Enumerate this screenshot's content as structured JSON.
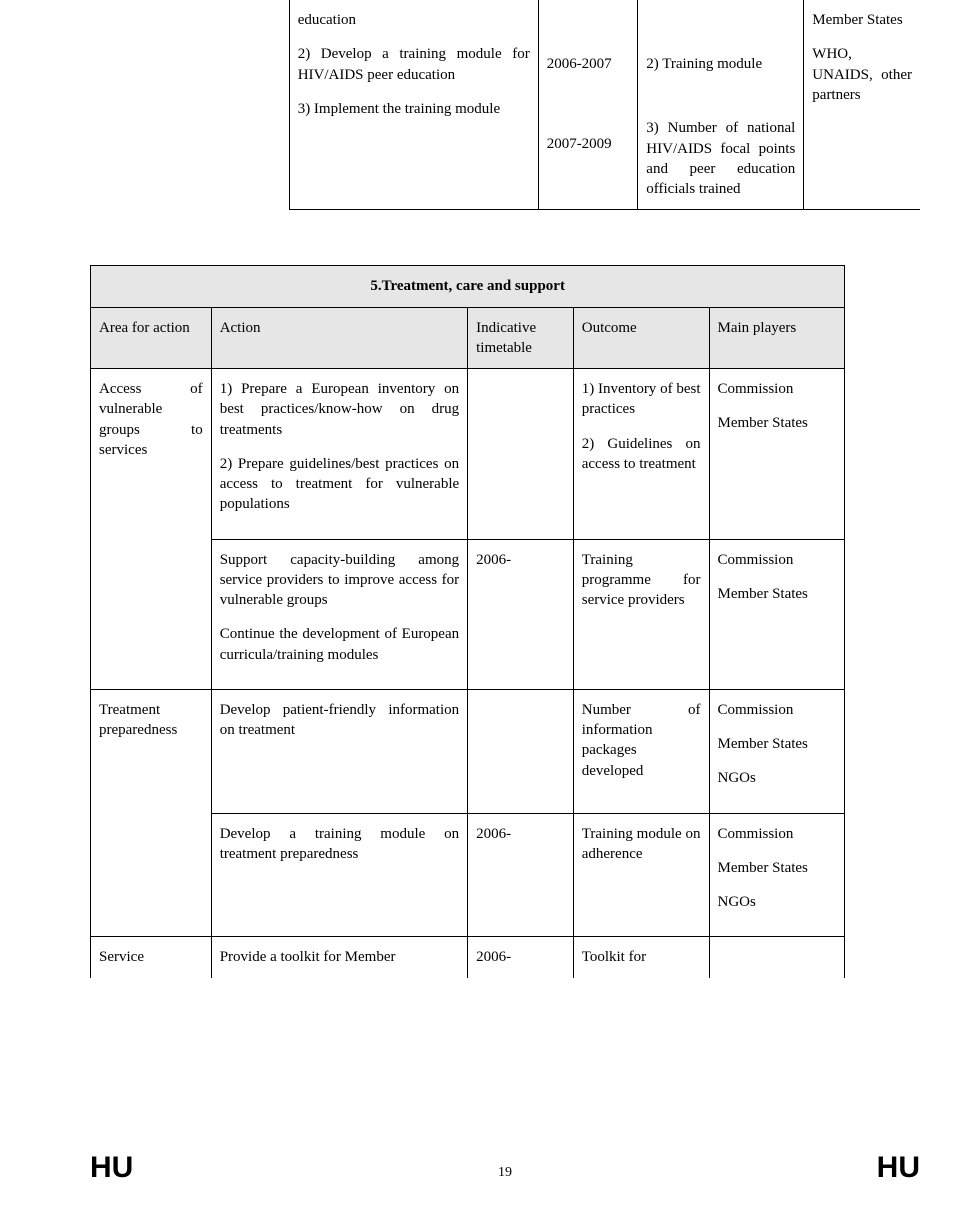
{
  "table_top": {
    "row1": {
      "action_a": "education",
      "action_b": "2) Develop a training module for HIV/AIDS peer education",
      "action_c": "3) Implement the training module",
      "time1": "2006-2007",
      "out1": "2) Training module",
      "main_a": "Member States",
      "main_b": "WHO, UNAIDS, other partners",
      "time2": "2007-2009",
      "out2": "3) Number of national HIV/AIDS focal points and peer education officials trained"
    }
  },
  "section5": {
    "title": "5.Treatment, care and support",
    "headers": {
      "area": "Area for action",
      "action": "Action",
      "time": "Indicative timetable",
      "outcome": "Outcome",
      "main": "Main players"
    },
    "rows": [
      {
        "area": "Access of vulnerable groups to services",
        "action": "1) Prepare a European inventory on best practices/know-how on drug treatments\n\n2) Prepare guidelines/best practices on access to treatment for vulnerable populations",
        "time": "",
        "outcome": "1) Inventory of best practices\n\n2) Guidelines on access to treatment",
        "main": "Commission\n\nMember States"
      },
      {
        "area": "",
        "action": "Support capacity-building among service providers to improve access for vulnerable groups\n\nContinue the development of European curricula/training modules",
        "time": "2006-",
        "outcome": "Training programme for service providers",
        "main": "Commission\n\nMember States"
      },
      {
        "area": "Treatment preparedness",
        "action": "Develop patient-friendly information on treatment",
        "time": "",
        "outcome": "Number of information packages developed",
        "main": "Commission\n\nMember States\n\nNGOs"
      },
      {
        "area": "",
        "action": "Develop a training module on treatment preparedness",
        "time": "2006-",
        "outcome": "Training module on adherence",
        "main": "Commission\n\nMember States\n\nNGOs"
      },
      {
        "area": "Service",
        "action": "Provide a toolkit for Member",
        "time": "2006-",
        "outcome": "Toolkit for",
        "main": ""
      }
    ]
  },
  "footer": {
    "left": "HU",
    "page": "19",
    "right": "HU"
  }
}
